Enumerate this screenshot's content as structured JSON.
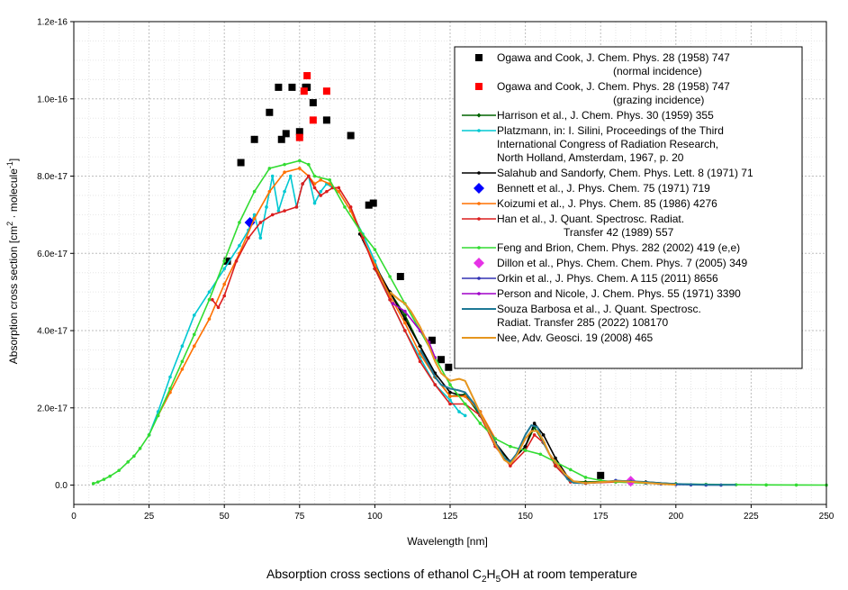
{
  "chart_data": {
    "type": "scatter",
    "xlabel": "Wavelength [nm]",
    "ylabel_main": "Absorption cross section [cm",
    "ylabel_sup1": "2",
    "ylabel_mid": " · molecule",
    "ylabel_sup2": "-1",
    "ylabel_end": "]",
    "caption_pre": "Absorption cross sections of ethanol C",
    "caption_s1": "2",
    "caption_h": "H",
    "caption_s2": "5",
    "caption_post": "OH at room temperature",
    "xlim": [
      0,
      250
    ],
    "ylim": [
      -5e-18,
      1.2e-16
    ],
    "xticks": [
      0,
      25,
      50,
      75,
      100,
      125,
      150,
      175,
      200,
      225,
      250
    ],
    "xtick_labels": [
      "0",
      "25",
      "50",
      "75",
      "100",
      "125",
      "150",
      "175",
      "200",
      "225",
      "250"
    ],
    "yticks": [
      0,
      2e-17,
      4e-17,
      6e-17,
      8e-17,
      1e-16,
      1.2e-16
    ],
    "ytick_labels": [
      "0.0",
      "2.0e-17",
      "4.0e-17",
      "6.0e-17",
      "8.0e-17",
      "1.0e-16",
      "1.2e-16"
    ],
    "grid": true,
    "legend_position": "top-right",
    "series": [
      {
        "name": "ogawa-normal",
        "label": "Ogawa and Cook, J. Chem. Phys. 28 (1958) 747",
        "label2": "(normal incidence)",
        "color": "#000000",
        "marker": "square",
        "line": false,
        "x": [
          51,
          55.5,
          60,
          65,
          68,
          69,
          70.5,
          72.5,
          75,
          77,
          77.5,
          79.5,
          84,
          92,
          98,
          99.5,
          108.5,
          119,
          122,
          124.5,
          175
        ],
        "y": [
          5.8e-17,
          8.35e-17,
          8.95e-17,
          9.65e-17,
          1.03e-16,
          8.95e-17,
          9.1e-17,
          1.03e-16,
          9.15e-17,
          1.03e-16,
          1.03e-16,
          9.9e-17,
          9.45e-17,
          9.05e-17,
          7.25e-17,
          7.3e-17,
          5.4e-17,
          3.75e-17,
          3.25e-17,
          3.05e-17,
          2.5e-18
        ]
      },
      {
        "name": "ogawa-grazing",
        "label": "Ogawa and Cook, J. Chem. Phys. 28 (1958) 747",
        "label2": "(grazing incidence)",
        "color": "#ff0000",
        "marker": "square",
        "line": false,
        "x": [
          75,
          76.5,
          77.5,
          79.5,
          84
        ],
        "y": [
          9e-17,
          1.02e-16,
          1.06e-16,
          9.45e-17,
          1.02e-16
        ]
      },
      {
        "name": "harrison",
        "label": "Harrison et al., J. Chem. Phys. 30 (1959) 355",
        "color": "#006400",
        "marker": "diamond-small",
        "line": true,
        "x": [
          100,
          105,
          110,
          115,
          120,
          125,
          130,
          135,
          140,
          145,
          150,
          153,
          156,
          160,
          165,
          170,
          180,
          190,
          200
        ],
        "y": [
          5.6e-17,
          5e-17,
          4.4e-17,
          3.6e-17,
          2.8e-17,
          2.3e-17,
          2.35e-17,
          1.8e-17,
          1.05e-17,
          6e-18,
          1e-17,
          1.5e-17,
          1.1e-17,
          5e-18,
          1e-18,
          8e-19,
          1e-18,
          7e-19,
          3e-19
        ]
      },
      {
        "name": "platzmann",
        "label": "Platzmann, in: I. Silini, Proceedings of the Third",
        "label2": "International Congress of Radiation Research,",
        "label3": "North Holland, Amsterdam, 1967, p. 20",
        "color": "#00c8d2",
        "marker": "small",
        "line": true,
        "x": [
          25,
          28,
          32,
          36,
          40,
          45,
          50,
          55,
          58,
          60,
          62,
          64,
          66,
          68,
          70,
          72,
          74,
          76,
          78,
          80,
          82,
          84,
          86,
          88,
          92,
          96,
          100,
          105,
          110,
          115,
          120,
          125,
          128,
          130
        ],
        "y": [
          1.3e-17,
          1.9e-17,
          2.8e-17,
          3.6e-17,
          4.4e-17,
          5e-17,
          5.6e-17,
          6.2e-17,
          6.6e-17,
          7e-17,
          6.4e-17,
          7.2e-17,
          8e-17,
          7.1e-17,
          7.6e-17,
          8e-17,
          7.2e-17,
          7.8e-17,
          8e-17,
          7.3e-17,
          7.6e-17,
          7.8e-17,
          7.7e-17,
          7.6e-17,
          7.1e-17,
          6.5e-17,
          5.8e-17,
          4.8e-17,
          4e-17,
          3.3e-17,
          2.6e-17,
          2.2e-17,
          1.9e-17,
          1.8e-17
        ]
      },
      {
        "name": "salahub",
        "label": "Salahub and Sandorfy, Chem. Phys. Lett. 8 (1971) 71",
        "color": "#000000",
        "marker": "small",
        "line": true,
        "x": [
          95,
          100,
          105,
          110,
          115,
          120,
          125,
          130,
          135,
          140,
          145,
          150,
          153,
          156,
          160,
          165,
          170,
          180,
          190,
          200,
          210
        ],
        "y": [
          6.5e-17,
          5.7e-17,
          5e-17,
          4.3e-17,
          3.6e-17,
          2.9e-17,
          2.4e-17,
          2.3e-17,
          1.9e-17,
          1.1e-17,
          6e-18,
          1e-17,
          1.6e-17,
          1.3e-17,
          7e-18,
          1e-18,
          5e-19,
          1e-18,
          8e-19,
          3e-19,
          1e-19
        ]
      },
      {
        "name": "bennett",
        "label": "Bennett et al., J. Phys. Chem. 75 (1971) 719",
        "color": "#0000ff",
        "marker": "diamond-big",
        "line": false,
        "x": [
          58.5
        ],
        "y": [
          6.8e-17
        ]
      },
      {
        "name": "koizumi",
        "label": "Koizumi et al., J. Phys. Chem. 85 (1986) 4276",
        "color": "#ff7000",
        "marker": "small",
        "line": true,
        "x": [
          28,
          32,
          36,
          40,
          45,
          50,
          55,
          60,
          65,
          70,
          75,
          78,
          80,
          82,
          85,
          88,
          92,
          96,
          100,
          105,
          110,
          115,
          120,
          125,
          130,
          135,
          140
        ],
        "y": [
          1.8e-17,
          2.4e-17,
          3e-17,
          3.6e-17,
          4.3e-17,
          5.2e-17,
          6e-17,
          6.9e-17,
          7.6e-17,
          8.1e-17,
          8.2e-17,
          8e-17,
          7.8e-17,
          7.9e-17,
          7.8e-17,
          7.6e-17,
          7.1e-17,
          6.4e-17,
          5.7e-17,
          4.9e-17,
          4.2e-17,
          3.4e-17,
          2.8e-17,
          2.3e-17,
          2.3e-17,
          1.9e-17,
          1.2e-17
        ]
      },
      {
        "name": "han",
        "label": "Han et al., J. Quant. Spectrosc. Radiat.",
        "label2": "Transfer 42 (1989) 557",
        "color": "#dc1e1e",
        "marker": "small",
        "line": true,
        "x": [
          46,
          48,
          50,
          54,
          58,
          62,
          66,
          70,
          74,
          76,
          78,
          80,
          82,
          84,
          86,
          88,
          92,
          96,
          100,
          105,
          110,
          115,
          120,
          125,
          130,
          135,
          140,
          145,
          150,
          153,
          156,
          160,
          165,
          170,
          180,
          190,
          200
        ],
        "y": [
          4.8e-17,
          4.6e-17,
          4.9e-17,
          5.8e-17,
          6.4e-17,
          6.8e-17,
          7e-17,
          7.1e-17,
          7.2e-17,
          7.8e-17,
          8e-17,
          7.7e-17,
          7.5e-17,
          7.6e-17,
          7.7e-17,
          7.7e-17,
          7.2e-17,
          6.4e-17,
          5.6e-17,
          4.8e-17,
          4e-17,
          3.2e-17,
          2.6e-17,
          2.1e-17,
          2.1e-17,
          1.8e-17,
          1e-17,
          5e-18,
          9e-18,
          1.3e-17,
          1.1e-17,
          5e-18,
          8e-19,
          5e-19,
          8e-19,
          6e-19,
          2e-19
        ]
      },
      {
        "name": "feng",
        "label": "Feng and Brion,  Chem. Phys. 282 (2002) 419 (e,e)",
        "color": "#32dc32",
        "marker": "small-dots",
        "line": true,
        "x": [
          6.5,
          8,
          10,
          12,
          15,
          18,
          20,
          22,
          25,
          28,
          32,
          36,
          40,
          45,
          50,
          55,
          60,
          65,
          70,
          75,
          78,
          80,
          85,
          90,
          95,
          100,
          105,
          110,
          115,
          120,
          125,
          130,
          135,
          140,
          145,
          150,
          155,
          160,
          165,
          170,
          175,
          180,
          190,
          200,
          210,
          220,
          230,
          240,
          250
        ],
        "y": [
          4e-19,
          8e-19,
          1.5e-18,
          2.3e-18,
          3.8e-18,
          6e-18,
          7.5e-18,
          9.5e-18,
          1.3e-17,
          1.8e-17,
          2.5e-17,
          3.2e-17,
          3.9e-17,
          4.8e-17,
          5.8e-17,
          6.8e-17,
          7.6e-17,
          8.2e-17,
          8.3e-17,
          8.4e-17,
          8.3e-17,
          8e-17,
          7.9e-17,
          7.2e-17,
          6.6e-17,
          6.1e-17,
          5.4e-17,
          4.7e-17,
          4e-17,
          3.3e-17,
          2.6e-17,
          2.1e-17,
          1.6e-17,
          1.2e-17,
          1e-17,
          9e-18,
          8e-18,
          6e-18,
          4e-18,
          2e-18,
          1.2e-18,
          8e-19,
          5e-19,
          3e-19,
          2e-19,
          1e-19,
          5e-20,
          3e-20,
          1e-20
        ]
      },
      {
        "name": "dillon",
        "label": "Dillon et al., Phys. Chem. Chem. Phys. 7 (2005) 349",
        "color": "#e632e6",
        "marker": "diamond-big",
        "line": false,
        "x": [
          185
        ],
        "y": [
          1e-18
        ]
      },
      {
        "name": "orkin",
        "label": "Orkin et al., J. Phys. Chem. A 115 (2011) 8656",
        "color": "#3232b4",
        "marker": "small",
        "line": true,
        "x": [
          180,
          185,
          190,
          195,
          200,
          205,
          210,
          215
        ],
        "y": [
          1.2e-18,
          1e-18,
          6e-19,
          3e-19,
          1.5e-19,
          8e-20,
          4e-20,
          2e-20
        ]
      },
      {
        "name": "person",
        "label": "Person and Nicole, J. Chem. Phys. 55 (1971) 3390",
        "color": "#a000c8",
        "marker": "small",
        "line": true,
        "x": [
          106,
          110,
          115,
          118,
          120
        ],
        "y": [
          4.7e-17,
          4.5e-17,
          4e-17,
          3.7e-17,
          3.3e-17
        ]
      },
      {
        "name": "souza",
        "label": "Souza Barbosa et al., J. Quant. Spectrosc.",
        "label2": "Radiat. Transfer 285 (2022) 108170",
        "color": "#1e7896",
        "marker": "none",
        "line": true,
        "x": [
          115,
          118,
          120,
          122,
          125,
          128,
          130,
          133,
          136,
          140,
          143,
          145,
          147,
          150,
          152,
          154,
          156,
          158,
          160,
          162,
          164,
          166,
          170,
          175,
          180,
          185,
          190,
          195,
          200,
          205,
          210,
          215,
          220
        ],
        "y": [
          3.5e-17,
          3.1e-17,
          2.8e-17,
          2.6e-17,
          2.5e-17,
          2.45e-17,
          2.4e-17,
          2.1e-17,
          1.7e-17,
          1.1e-17,
          7e-18,
          6e-18,
          8e-18,
          1.3e-17,
          1.55e-17,
          1.5e-17,
          1.1e-17,
          8e-18,
          6e-18,
          4e-18,
          1.5e-18,
          6e-19,
          5e-19,
          8e-19,
          1.1e-18,
          1e-18,
          8e-19,
          5e-19,
          3e-19,
          2e-19,
          1e-19,
          7e-20,
          5e-20
        ]
      },
      {
        "name": "nee",
        "label": "Nee, Adv. Geosci. 19 (2008) 465",
        "color": "#e6961e",
        "marker": "none",
        "line": true,
        "x": [
          105,
          108,
          110,
          112,
          115,
          118,
          120,
          122,
          125,
          128,
          130,
          133,
          136,
          140,
          143,
          145,
          147,
          150,
          152,
          154,
          156,
          158,
          160,
          163,
          166,
          170,
          175,
          180,
          185,
          190,
          195,
          200
        ],
        "y": [
          5e-17,
          4.8e-17,
          4.7e-17,
          4.5e-17,
          4.1e-17,
          3.6e-17,
          3.2e-17,
          2.9e-17,
          2.7e-17,
          2.75e-17,
          2.7e-17,
          2.2e-17,
          1.7e-17,
          1.05e-17,
          6.5e-18,
          5.5e-18,
          7.5e-18,
          1.2e-17,
          1.4e-17,
          1.4e-17,
          1.15e-17,
          8e-18,
          6e-18,
          3e-18,
          1e-18,
          5e-19,
          8e-19,
          1e-18,
          9e-19,
          6e-19,
          3e-19,
          1e-19
        ]
      }
    ]
  }
}
